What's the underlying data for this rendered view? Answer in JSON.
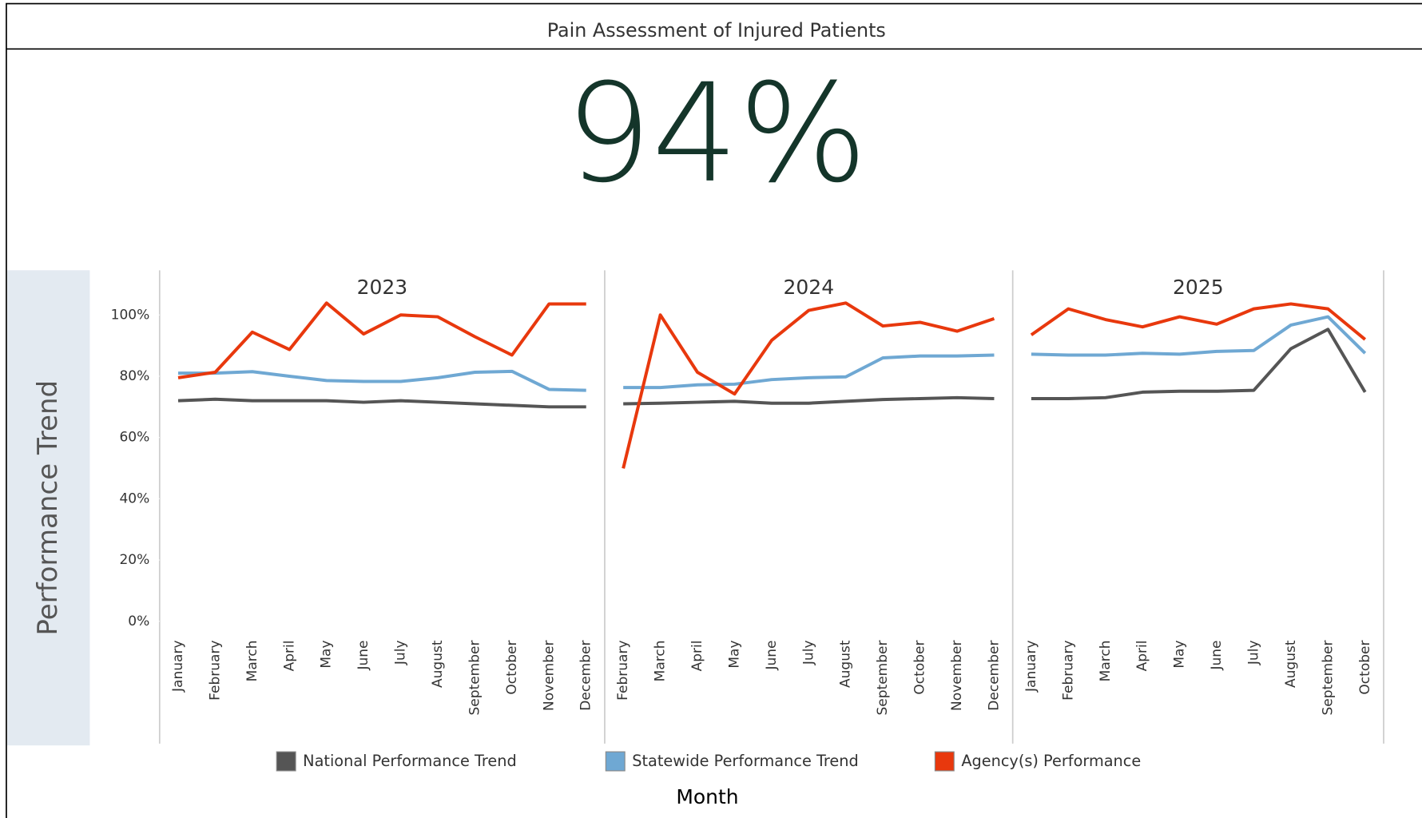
{
  "title": "Pain Assessment of Injured Patients",
  "kpi": "94%",
  "y_axis_label": "Performance Trend",
  "x_axis_label": "Month",
  "chart_data": [
    {
      "type": "line",
      "title": "2023",
      "categories": [
        "January",
        "February",
        "March",
        "April",
        "May",
        "June",
        "July",
        "August",
        "September",
        "October",
        "November",
        "December"
      ],
      "ylim": [
        -5,
        114
      ],
      "yticks": [
        {
          "value": 0,
          "label": "0%"
        },
        {
          "value": 20,
          "label": "20%"
        },
        {
          "value": 40,
          "label": "40%"
        },
        {
          "value": 60,
          "label": "60%"
        },
        {
          "value": 80,
          "label": "80%"
        },
        {
          "value": 100,
          "label": "100%"
        }
      ],
      "series": [
        {
          "name": "National Performance Trend",
          "color": "#555555",
          "values": [
            72,
            72.5,
            72,
            72,
            72,
            71.5,
            72,
            71.5,
            71,
            70.5,
            70,
            70
          ]
        },
        {
          "name": "Statewide Performance Trend",
          "color": "#6fa8d3",
          "values": [
            81,
            81,
            81.5,
            80,
            78.6,
            78.3,
            78.3,
            79.5,
            81.3,
            81.6,
            75.7,
            75.4
          ]
        },
        {
          "name": "Agency(s) Performance",
          "color": "#e8380d",
          "values": [
            79.5,
            81.3,
            94.4,
            88.7,
            103.9,
            93.8,
            100,
            99.4,
            92.9,
            86.9,
            103.6,
            103.6
          ]
        }
      ]
    },
    {
      "type": "line",
      "title": "2024",
      "categories": [
        "February",
        "March",
        "April",
        "May",
        "June",
        "July",
        "August",
        "September",
        "October",
        "November",
        "December"
      ],
      "ylim": [
        -5,
        114
      ],
      "series": [
        {
          "name": "National Performance Trend",
          "color": "#555555",
          "values": [
            71,
            71.2,
            71.5,
            71.8,
            71.2,
            71.2,
            71.8,
            72.4,
            72.7,
            73,
            72.7
          ]
        },
        {
          "name": "Statewide Performance Trend",
          "color": "#6fa8d3",
          "values": [
            76.3,
            76.3,
            77.2,
            77.4,
            78.9,
            79.5,
            79.8,
            86,
            86.6,
            86.6,
            86.9
          ]
        },
        {
          "name": "Agency(s) Performance",
          "color": "#e8380d",
          "values": [
            49.9,
            100,
            81.3,
            74.2,
            91.7,
            101.5,
            103.9,
            96.4,
            97.6,
            94.7,
            98.8
          ]
        }
      ]
    },
    {
      "type": "line",
      "title": "2025",
      "categories": [
        "January",
        "February",
        "March",
        "April",
        "May",
        "June",
        "July",
        "August",
        "September",
        "October"
      ],
      "ylim": [
        -5,
        114
      ],
      "series": [
        {
          "name": "National Performance Trend",
          "color": "#555555",
          "values": [
            72.7,
            72.7,
            73,
            74.8,
            75.1,
            75.1,
            75.4,
            89,
            95.3,
            74.8
          ]
        },
        {
          "name": "Statewide Performance Trend",
          "color": "#6fa8d3",
          "values": [
            87.2,
            86.9,
            86.9,
            87.5,
            87.2,
            88.1,
            88.4,
            96.7,
            99.4,
            87.5
          ]
        },
        {
          "name": "Agency(s) Performance",
          "color": "#e8380d",
          "values": [
            93.5,
            102,
            98.5,
            96.1,
            99.4,
            97,
            102,
            103.6,
            102,
            92
          ]
        }
      ]
    }
  ]
}
